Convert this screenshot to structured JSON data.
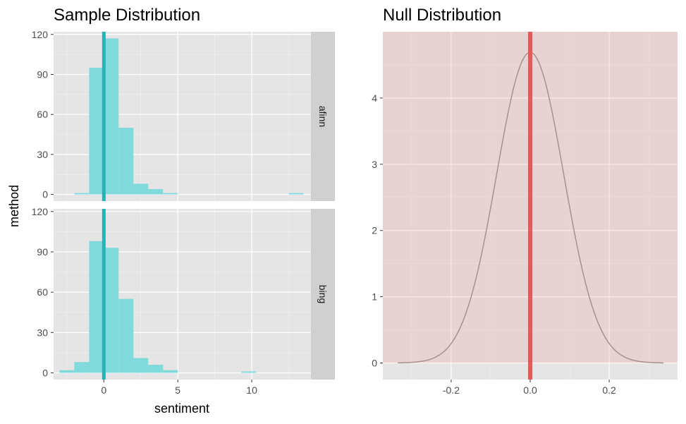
{
  "colors": {
    "panel_bg": "#e5e5e5",
    "grid_major": "#ffffff",
    "strip_bg": "#d0d0d0",
    "hist_fill": "#80d9db",
    "mean_line": "#27b3b5",
    "null_shade": "#f18a8a",
    "null_line": "#e85a5a",
    "curve": "#a89090"
  },
  "chart_data": [
    {
      "type": "bar",
      "title": "Sample Distribution",
      "xlabel": "sentiment",
      "ylabel": "method",
      "xlim": [
        -3.4,
        14.0
      ],
      "ylim": [
        -5,
        122
      ],
      "xticks": [
        0,
        5,
        10
      ],
      "xtick_labels": [
        "0",
        "5",
        "10"
      ],
      "yticks": [
        0,
        30,
        60,
        90,
        120
      ],
      "ytick_labels": [
        "0",
        "30",
        "60",
        "90",
        "120"
      ],
      "bin_width": 1,
      "grid": true,
      "facets": [
        {
          "strip_label": "afinn",
          "observed_mean": 0.0,
          "bins": [
            {
              "x": -1.5,
              "count": 1
            },
            {
              "x": -0.5,
              "count": 95
            },
            {
              "x": 0.5,
              "count": 117
            },
            {
              "x": 1.5,
              "count": 50
            },
            {
              "x": 2.5,
              "count": 8
            },
            {
              "x": 3.5,
              "count": 4
            },
            {
              "x": 4.5,
              "count": 1
            },
            {
              "x": 13.0,
              "count": 1
            }
          ]
        },
        {
          "strip_label": "bing",
          "observed_mean": 0.0,
          "bins": [
            {
              "x": -2.5,
              "count": 2
            },
            {
              "x": -1.5,
              "count": 8
            },
            {
              "x": -0.5,
              "count": 98
            },
            {
              "x": 0.5,
              "count": 93
            },
            {
              "x": 1.5,
              "count": 55
            },
            {
              "x": 2.5,
              "count": 11
            },
            {
              "x": 3.5,
              "count": 6
            },
            {
              "x": 4.5,
              "count": 2
            },
            {
              "x": 9.8,
              "count": 1
            }
          ]
        }
      ]
    },
    {
      "type": "line",
      "title": "Null Distribution",
      "xlim": [
        -0.373,
        0.373
      ],
      "ylim": [
        -0.25,
        5.0
      ],
      "xticks": [
        -0.2,
        0.0,
        0.2
      ],
      "xtick_labels": [
        "-0.2",
        "0.0",
        "0.2"
      ],
      "yticks": [
        0,
        1,
        2,
        3,
        4
      ],
      "ytick_labels": [
        "0",
        "1",
        "2",
        "3",
        "4"
      ],
      "grid": true,
      "observed_statistic": 0.0,
      "shaded_region": "entire null distribution",
      "density": {
        "mean": 0.0,
        "sd": 0.085,
        "x_range": [
          -0.335,
          0.337
        ],
        "peak": 4.69
      }
    }
  ]
}
